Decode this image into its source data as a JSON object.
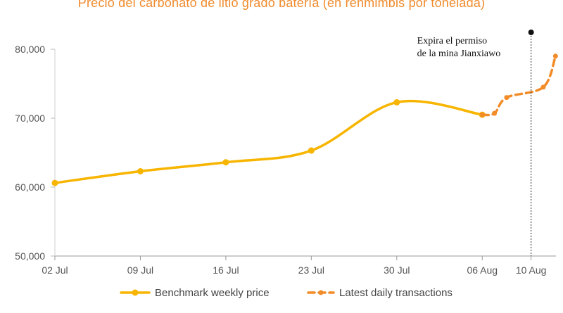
{
  "chart_data": {
    "type": "line",
    "title": "Precio del carbonato de litio grado batería (en renmimbis por tonelada)",
    "xlabel": "",
    "ylabel": "",
    "ylim": [
      50000,
      80000
    ],
    "yticks": [
      "50,000",
      "60,000",
      "70,000",
      "80,000"
    ],
    "xticks": [
      "02 Jul",
      "09 Jul",
      "16 Jul",
      "23 Jul",
      "30 Jul",
      "06 Aug",
      "10 Aug"
    ],
    "series": [
      {
        "name": "Benchmark weekly price",
        "color": "#f7b500",
        "style": "solid",
        "x": [
          "02 Jul",
          "09 Jul",
          "16 Jul",
          "23 Jul",
          "30 Jul",
          "06 Aug"
        ],
        "values": [
          60600,
          62300,
          63600,
          65300,
          72300,
          70500
        ]
      },
      {
        "name": "Latest daily transactions",
        "color": "#f28c28",
        "style": "dashed",
        "x": [
          "06 Aug",
          "07 Aug",
          "08 Aug",
          "11 Aug",
          "12 Aug"
        ],
        "values": [
          70500,
          70700,
          73000,
          74500,
          79000
        ]
      }
    ],
    "annotations": [
      {
        "text_lines": [
          "Expira el permiso",
          "de la mina Jianxiawo"
        ],
        "x": "10 Aug",
        "style": "vertical dotted line"
      }
    ],
    "legend_position": "bottom",
    "grid": false
  }
}
